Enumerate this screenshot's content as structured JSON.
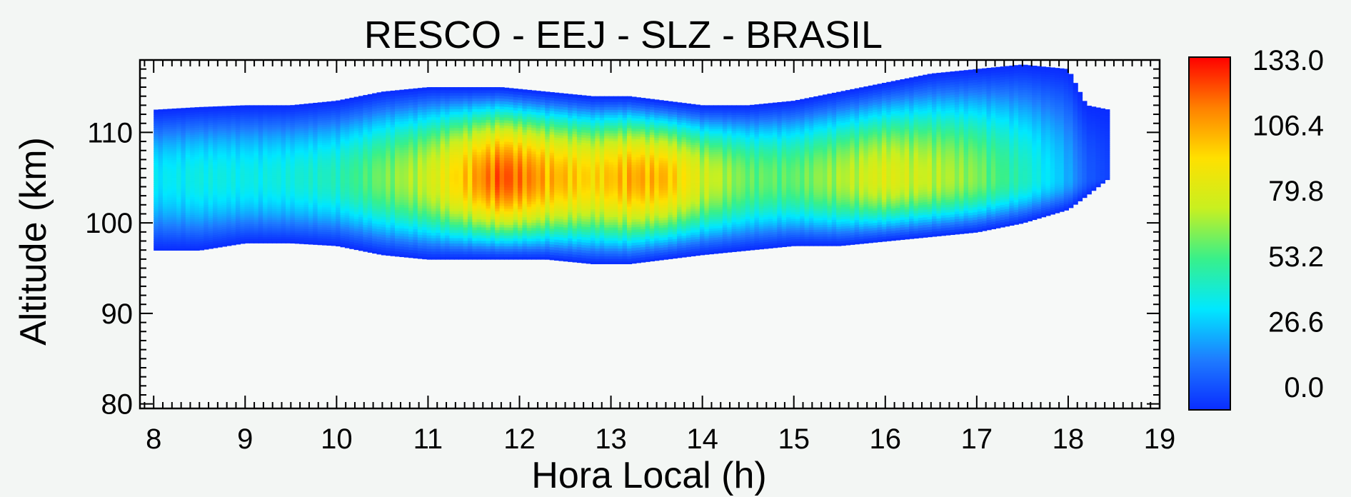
{
  "chart_data": {
    "type": "heatmap",
    "title": "RESCO - EEJ - SLZ - BRASIL",
    "xlabel": "Hora Local (h)",
    "ylabel": "Altitude (km)",
    "xlim": [
      7.85,
      19
    ],
    "ylim": [
      79.5,
      118
    ],
    "xticks": [
      "8",
      "9",
      "10",
      "11",
      "12",
      "13",
      "14",
      "15",
      "16",
      "17",
      "18",
      "19"
    ],
    "yticks": [
      "80",
      "90",
      "100",
      "110"
    ],
    "colorbar": {
      "min": 0.0,
      "max": 133.0,
      "tick_labels": [
        "133.0",
        "106.4",
        "79.8",
        "53.2",
        "26.6",
        "0.0"
      ],
      "colors": [
        "#0a2dff",
        "#1e7cff",
        "#00e8ff",
        "#38f08a",
        "#c8f020",
        "#ffe000",
        "#ff8000",
        "#ff0000"
      ]
    },
    "echo_layer": {
      "x_range": [
        8.0,
        18.45
      ],
      "center_altitude": 105,
      "profile": [
        {
          "x": 8.0,
          "bottom": 97.0,
          "top": 112.5,
          "peak": 40
        },
        {
          "x": 8.5,
          "bottom": 97.0,
          "top": 112.8,
          "peak": 45
        },
        {
          "x": 9.0,
          "bottom": 97.8,
          "top": 113.0,
          "peak": 44
        },
        {
          "x": 9.5,
          "bottom": 97.8,
          "top": 113.0,
          "peak": 46
        },
        {
          "x": 10.0,
          "bottom": 97.5,
          "top": 113.5,
          "peak": 52
        },
        {
          "x": 10.5,
          "bottom": 96.5,
          "top": 114.5,
          "peak": 68
        },
        {
          "x": 11.0,
          "bottom": 96.0,
          "top": 115.0,
          "peak": 82
        },
        {
          "x": 11.5,
          "bottom": 96.0,
          "top": 115.0,
          "peak": 112
        },
        {
          "x": 11.8,
          "bottom": 96.0,
          "top": 115.0,
          "peak": 128
        },
        {
          "x": 12.3,
          "bottom": 96.0,
          "top": 114.5,
          "peak": 112
        },
        {
          "x": 12.8,
          "bottom": 95.5,
          "top": 114.0,
          "peak": 100
        },
        {
          "x": 13.2,
          "bottom": 95.5,
          "top": 114.0,
          "peak": 112
        },
        {
          "x": 13.6,
          "bottom": 96.0,
          "top": 113.5,
          "peak": 108
        },
        {
          "x": 14.0,
          "bottom": 96.5,
          "top": 113.0,
          "peak": 85
        },
        {
          "x": 14.5,
          "bottom": 97.0,
          "top": 113.0,
          "peak": 66
        },
        {
          "x": 15.0,
          "bottom": 97.5,
          "top": 113.5,
          "peak": 65
        },
        {
          "x": 15.5,
          "bottom": 97.5,
          "top": 114.5,
          "peak": 76
        },
        {
          "x": 16.0,
          "bottom": 98.0,
          "top": 115.5,
          "peak": 88
        },
        {
          "x": 16.5,
          "bottom": 98.5,
          "top": 116.5,
          "peak": 80
        },
        {
          "x": 17.0,
          "bottom": 99.0,
          "top": 117.0,
          "peak": 70
        },
        {
          "x": 17.5,
          "bottom": 100.0,
          "top": 117.5,
          "peak": 52
        },
        {
          "x": 18.0,
          "bottom": 101.5,
          "top": 117.0,
          "peak": 30
        },
        {
          "x": 18.2,
          "bottom": 103.0,
          "top": 113.0,
          "peak": 12
        },
        {
          "x": 18.45,
          "bottom": 105.0,
          "top": 112.5,
          "peak": 5
        }
      ]
    },
    "grid": false,
    "legend": "colorbar right"
  }
}
